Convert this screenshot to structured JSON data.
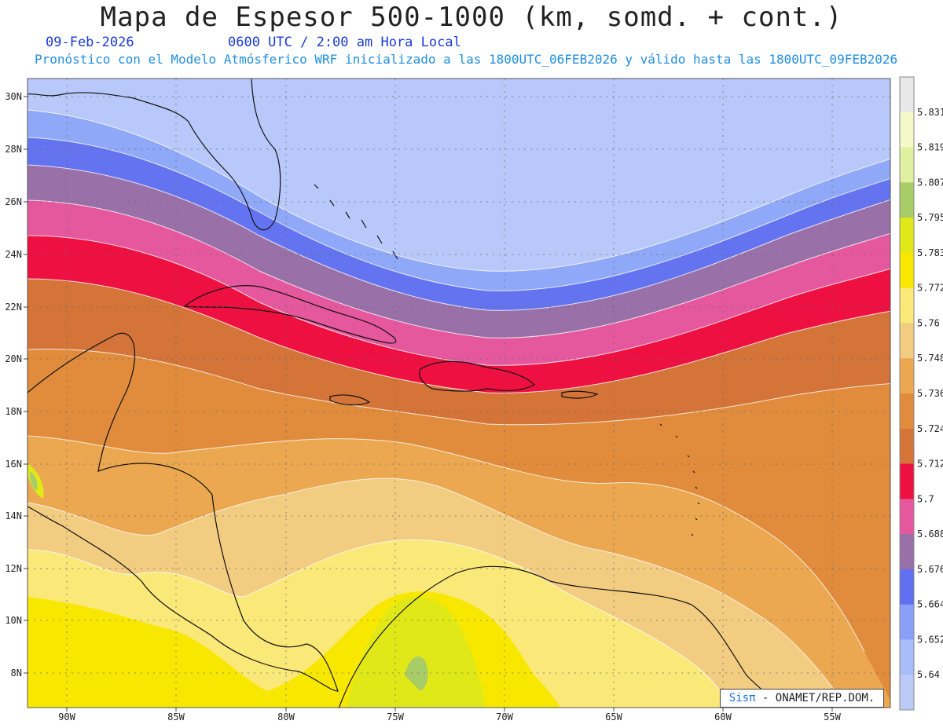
{
  "title": "Mapa de Espesor 500-1000 (km, somd. + cont.)",
  "date": "09-Feb-2026",
  "time": "0600 UTC / 2:00 am Hora Local",
  "subtitle": "Pronóstico con el Modelo Atmósferico WRF inicializado a las 1800UTC_06FEB2026 y válido hasta las  1800UTC_09FEB2026",
  "credit": {
    "brand": "Sisπ",
    "text": " - ONAMET/REP.DOM."
  },
  "lat_labels": [
    "30N",
    "28N",
    "26N",
    "24N",
    "22N",
    "20N",
    "18N",
    "16N",
    "14N",
    "12N",
    "10N",
    "8N"
  ],
  "lon_labels": [
    "90W",
    "85W",
    "80W",
    "75W",
    "70W",
    "65W",
    "60W",
    "55W"
  ],
  "legend": {
    "levels": [
      "5.831",
      "5.819",
      "5.807",
      "5.795",
      "5.783",
      "5.772",
      "5.76",
      "5.748",
      "5.736",
      "5.724",
      "5.712",
      "5.7",
      "5.688",
      "5.676",
      "5.664",
      "5.652",
      "5.64"
    ],
    "colors": [
      "#e8e8e8",
      "#f5f8c8",
      "#e0f0a0",
      "#a8cc68",
      "#e0e818",
      "#f8e800",
      "#fae878",
      "#f2cc80",
      "#eca850",
      "#e08c3c",
      "#d47438",
      "#ee1040",
      "#e6589e",
      "#9a70a8",
      "#6070f0",
      "#8aa0f8",
      "#a8bcfa",
      "#bccaf8"
    ]
  },
  "colors": {
    "band_north": "#b8c8fa",
    "band_2": "#8fa8f8",
    "band_3": "#6474f0",
    "band_4": "#9a70a8",
    "band_5": "#e6589e",
    "band_6": "#ee1040",
    "band_7": "#d47438",
    "band_8": "#e08c3c",
    "band_9": "#eca850",
    "band_10": "#f2cc80",
    "band_11": "#fae878",
    "band_12": "#f8e800",
    "band_13": "#e0e818"
  }
}
